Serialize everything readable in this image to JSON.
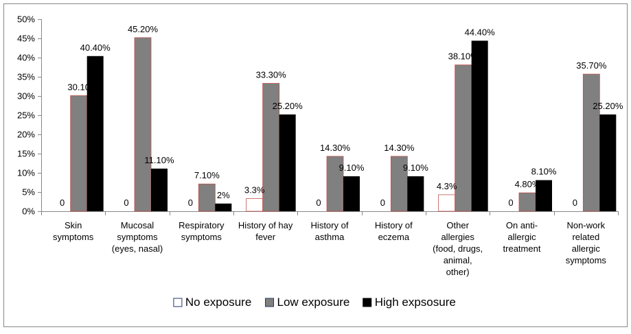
{
  "chart_data": {
    "type": "bar",
    "categories": [
      [
        "Skin",
        "symptoms"
      ],
      [
        "Mucosal",
        "symptoms",
        "(eyes, nasal)"
      ],
      [
        "Respiratory",
        "symptoms"
      ],
      [
        "History of hay",
        "fever"
      ],
      [
        "History of",
        "asthma"
      ],
      [
        "History of",
        "eczema"
      ],
      [
        "Other",
        "allergies",
        "(food, drugs,",
        "animal,",
        "other)"
      ],
      [
        "On anti-",
        "allergic",
        "treatment"
      ],
      [
        "Non-work",
        "related",
        "allergic",
        "symptoms"
      ]
    ],
    "series": [
      {
        "name": "No exposure",
        "color": "#ffffff",
        "values": [
          0,
          0,
          0,
          3.3,
          0,
          0,
          4.3,
          0,
          0
        ],
        "labels": [
          "0",
          "0",
          "0",
          "3.3%",
          "0",
          "0",
          "4.3%",
          "0",
          "0"
        ]
      },
      {
        "name": "Low exposure",
        "color": "#808080",
        "values": [
          30.1,
          45.2,
          7.1,
          33.3,
          14.3,
          14.3,
          38.1,
          4.8,
          35.7
        ],
        "labels": [
          "30.10",
          "45.20%",
          "7.10%",
          "33.30%",
          "14.30%",
          "14.30%",
          "38.10%",
          "4.80%",
          "35.70%"
        ]
      },
      {
        "name": "High expsosure",
        "color": "#000000",
        "values": [
          40.4,
          11.1,
          2,
          25.2,
          9.1,
          9.1,
          44.4,
          8.1,
          25.2
        ],
        "labels": [
          "40.40%",
          "11.10%",
          "2%",
          "25.20%",
          "9.10%",
          "9.10%",
          "44.40%",
          "8.10%",
          "25.20%"
        ]
      }
    ],
    "y_ticks": [
      "0%",
      "5%",
      "10%",
      "15%",
      "20%",
      "25%",
      "30%",
      "35%",
      "40%",
      "45%",
      "50%"
    ],
    "ylim": [
      0,
      50
    ],
    "grid": false,
    "legend_position": "bottom",
    "title": "",
    "xlabel": "",
    "ylabel": ""
  }
}
